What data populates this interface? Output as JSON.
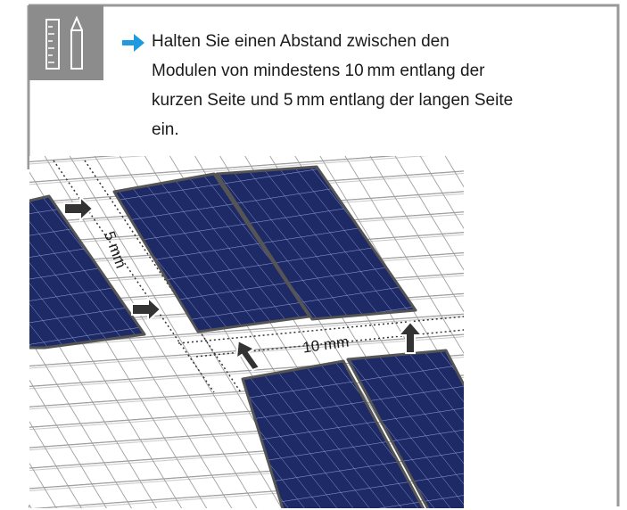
{
  "instruction": {
    "lines": [
      "Halten Sie einen Abstand zwischen den",
      "Modulen von mindestens 10 mm entlang der",
      "kurzen Seite und 5 mm entlang der langen Seite",
      "ein."
    ]
  },
  "illustration": {
    "gap_long_label": "5 mm",
    "gap_short_label": "10 mm"
  }
}
